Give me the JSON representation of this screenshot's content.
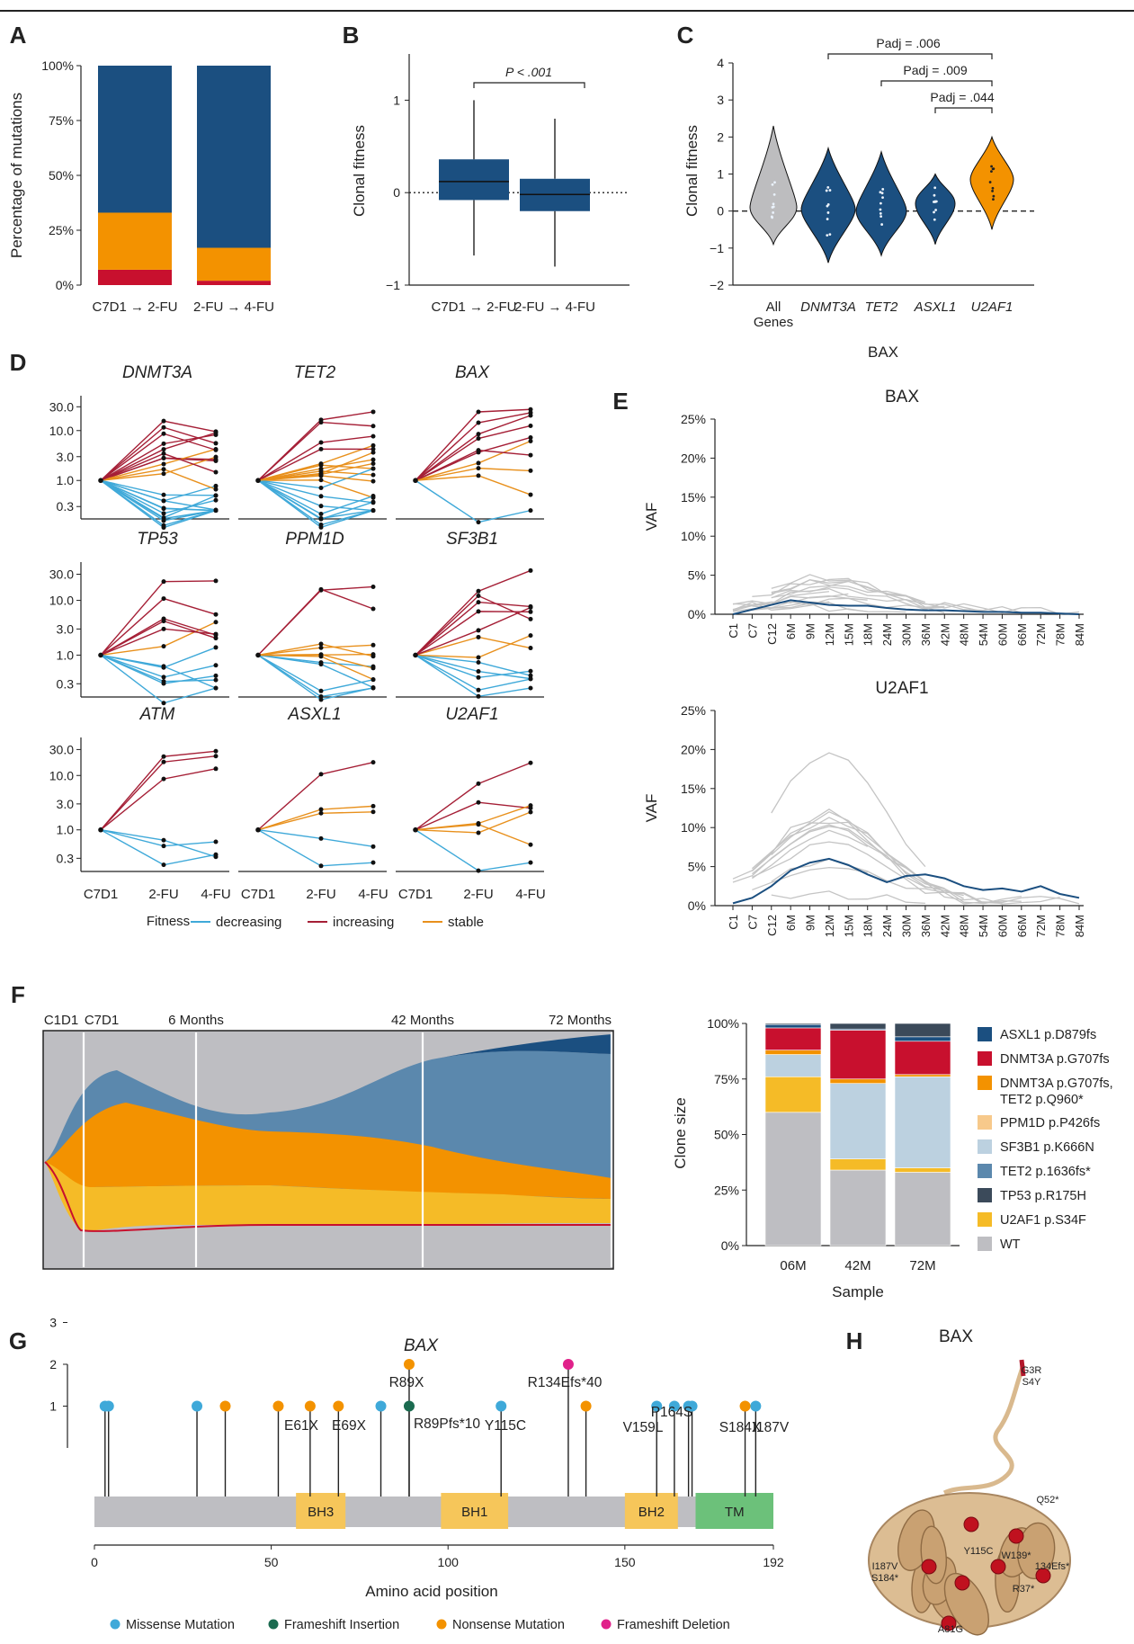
{
  "panel_letters": [
    "A",
    "B",
    "C",
    "D",
    "E",
    "F",
    "G",
    "H"
  ],
  "colors": {
    "navy": "#1b4f80",
    "orange": "#f39200",
    "red": "#c8102e",
    "teal": "#3fa9d9",
    "crimson": "#a51f36",
    "amber": "#e8901c",
    "grey": "#bdbdbf",
    "green": "#6cc17a",
    "yellow_box": "#f6c65a",
    "pink": "#e0218a",
    "darkgreen": "#1b6b50"
  },
  "chart_data": [
    {
      "panel": "A",
      "type": "bar",
      "stacked": true,
      "categories": [
        "C7D1 → 2-FU",
        "2-FU → 4-FU"
      ],
      "series": [
        {
          "color_key": "red",
          "values": [
            7,
            2
          ]
        },
        {
          "color_key": "orange",
          "values": [
            26,
            15
          ]
        },
        {
          "color_key": "navy",
          "values": [
            67,
            83
          ]
        }
      ],
      "ylabel": "Percentage of mutations",
      "yticks": [
        "0%",
        "25%",
        "50%",
        "75%",
        "100%"
      ],
      "ylim": [
        0,
        100
      ]
    },
    {
      "panel": "B",
      "type": "box",
      "categories": [
        "C7D1 → 2-FU",
        "2-FU → 4-FU"
      ],
      "boxes": [
        {
          "min": -0.68,
          "q1": -0.08,
          "median": 0.12,
          "q3": 0.36,
          "max": 1.0
        },
        {
          "min": -0.8,
          "q1": -0.2,
          "median": -0.02,
          "q3": 0.15,
          "max": 0.8
        }
      ],
      "ylabel": "Clonal fitness",
      "yticks": [
        "−1",
        "0",
        "1"
      ],
      "ylim": [
        -1,
        1.5
      ],
      "annotation": "P < .001"
    },
    {
      "panel": "C",
      "type": "violin",
      "categories": [
        "All\nGenes",
        "DNMT3A",
        "TET2",
        "ASXL1",
        "U2AF1"
      ],
      "medians": [
        0.1,
        0.05,
        0.0,
        0.2,
        0.85
      ],
      "ranges": [
        [
          -0.9,
          2.3
        ],
        [
          -1.4,
          1.7
        ],
        [
          -1.2,
          1.6
        ],
        [
          -0.9,
          1.0
        ],
        [
          -0.5,
          2.0
        ]
      ],
      "ylabel": "Clonal fitness",
      "xlabel": "BAX",
      "yticks": [
        "−2",
        "−1",
        "0",
        "1",
        "2",
        "3",
        "4"
      ],
      "ylim": [
        -2,
        4
      ],
      "comparisons": [
        "Padj = .006",
        "Padj = .009",
        "Padj = .044"
      ]
    },
    {
      "panel": "D",
      "type": "line",
      "subplots": [
        "DNMT3A",
        "TET2",
        "BAX",
        "TP53",
        "PPM1D",
        "SF3B1",
        "ATM",
        "ASXL1",
        "U2AF1"
      ],
      "x": [
        "C7D1",
        "2-FU",
        "4-FU"
      ],
      "yticks": [
        "0.3",
        "1.0",
        "3.0",
        "10.0",
        "30.0"
      ],
      "scale": "log",
      "legend_title": "Fitness",
      "legend": [
        "decreasing",
        "increasing",
        "stable"
      ]
    },
    {
      "panel": "E",
      "type": "line",
      "subplots": [
        "BAX",
        "U2AF1"
      ],
      "ylabel": "VAF",
      "x": [
        "C1",
        "C7",
        "C12",
        "6M",
        "9M",
        "12M",
        "15M",
        "18M",
        "24M",
        "30M",
        "36M",
        "42M",
        "48M",
        "54M",
        "60M",
        "66M",
        "72M",
        "78M",
        "84M"
      ],
      "yticks": [
        "0%",
        "5%",
        "10%",
        "15%",
        "20%",
        "25%"
      ],
      "ylim": [
        0,
        25
      ],
      "highlight_series": [
        [
          0,
          0.6,
          1.2,
          1.8,
          1.5,
          1.2,
          1.1,
          1.1,
          0.8,
          0.6,
          0.5,
          0.5,
          0.4,
          0.3,
          0.3,
          0.2,
          0.2,
          0.1,
          0
        ],
        [
          0.3,
          1.0,
          2.5,
          4.5,
          5.5,
          6.0,
          5.2,
          4.0,
          3.0,
          3.8,
          4.0,
          3.5,
          2.5,
          2.0,
          2.2,
          1.8,
          2.5,
          1.5,
          1.0
        ]
      ]
    },
    {
      "panel": "F",
      "type": "bar",
      "stacked": true,
      "fishplot_labels": [
        "C1D1",
        "C7D1",
        "6 Months",
        "42 Months",
        "72 Months"
      ],
      "categories": [
        "06M",
        "42M",
        "72M"
      ],
      "xlabel": "Sample",
      "ylabel": "Clone size",
      "yticks": [
        "0%",
        "25%",
        "50%",
        "75%",
        "100%"
      ],
      "legend": [
        {
          "label": "ASXL1 p.D879fs",
          "color": "#1b4f80"
        },
        {
          "label": "DNMT3A p.G707fs",
          "color": "#c8102e"
        },
        {
          "label": "DNMT3A p.G707fs,\nTET2 p.Q960*",
          "color": "#f39200"
        },
        {
          "label": "PPM1D p.P426fs",
          "color": "#f7c98b"
        },
        {
          "label": "SF3B1 p.K666N",
          "color": "#bcd1e0"
        },
        {
          "label": "TET2 p.1636fs*",
          "color": "#5b88ad"
        },
        {
          "label": "TP53 p.R175H",
          "color": "#3b4a5a"
        },
        {
          "label": "U2AF1 p.S34F",
          "color": "#f5bb27"
        },
        {
          "label": "WT",
          "color": "#bebec2"
        }
      ],
      "stacks": [
        [
          60,
          16,
          0,
          10,
          0,
          2,
          10,
          1.5,
          0.5
        ],
        [
          34,
          5,
          0,
          34,
          0,
          2,
          22,
          0.5,
          2.5
        ],
        [
          33,
          2,
          0,
          41,
          0,
          1,
          15,
          2,
          6
        ]
      ]
    },
    {
      "panel": "G",
      "type": "lollipop",
      "title": "BAX",
      "xlabel": "Amino acid position",
      "xticks": [
        "0",
        "50",
        "100",
        "150",
        "192"
      ],
      "yticks": [
        "1",
        "2",
        "3"
      ],
      "domains": [
        "BH3",
        "BH1",
        "BH2",
        "TM"
      ],
      "labels": [
        "E61X",
        "E69X",
        "R89X",
        "R89Pfs*10",
        "Y115C",
        "R134Efs*40",
        "V159L",
        "P164S",
        "S184X",
        "I187V"
      ],
      "legend": [
        "Missense Mutation",
        "Frameshift Insertion",
        "Nonsense Mutation",
        "Frameshift Deletion"
      ],
      "points": [
        {
          "pos": 3,
          "count": 1,
          "kind": "missense"
        },
        {
          "pos": 4,
          "count": 1,
          "kind": "missense"
        },
        {
          "pos": 29,
          "count": 1,
          "kind": "missense"
        },
        {
          "pos": 37,
          "count": 1,
          "kind": "nonsense"
        },
        {
          "pos": 52,
          "count": 1,
          "kind": "nonsense"
        },
        {
          "pos": 61,
          "count": 1,
          "kind": "nonsense"
        },
        {
          "pos": 69,
          "count": 1,
          "kind": "nonsense"
        },
        {
          "pos": 81,
          "count": 1,
          "kind": "missense"
        },
        {
          "pos": 89,
          "count": 2,
          "kind": "nonsense"
        },
        {
          "pos": 89,
          "count": 1,
          "kind": "insertion"
        },
        {
          "pos": 115,
          "count": 1,
          "kind": "missense"
        },
        {
          "pos": 134,
          "count": 2,
          "kind": "deletion"
        },
        {
          "pos": 139,
          "count": 1,
          "kind": "nonsense"
        },
        {
          "pos": 159,
          "count": 1,
          "kind": "missense"
        },
        {
          "pos": 164,
          "count": 1,
          "kind": "missense"
        },
        {
          "pos": 168,
          "count": 1,
          "kind": "missense"
        },
        {
          "pos": 169,
          "count": 1,
          "kind": "missense"
        },
        {
          "pos": 184,
          "count": 1,
          "kind": "nonsense"
        },
        {
          "pos": 187,
          "count": 1,
          "kind": "missense"
        }
      ]
    },
    {
      "panel": "H",
      "type": "structure",
      "title": "BAX",
      "labels": [
        "G3R\nS4Y",
        "Q52*",
        "I187V\nS184*",
        "Y115C",
        "W139*",
        "134Efs*",
        "R37*",
        "A81G"
      ]
    }
  ]
}
